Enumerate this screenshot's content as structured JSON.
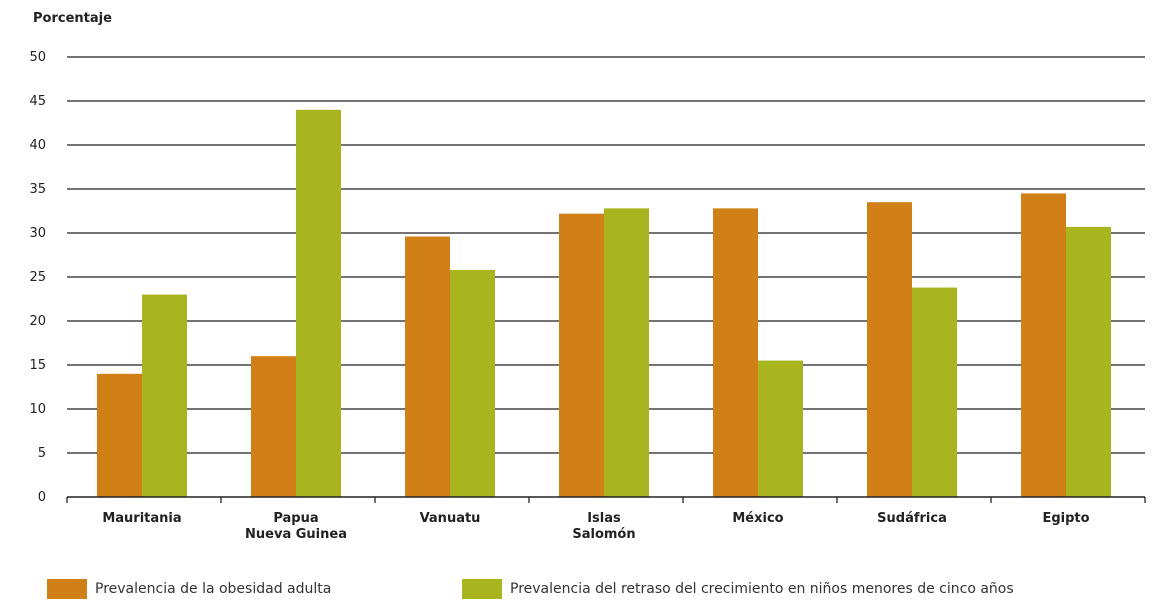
{
  "chart_data": {
    "type": "bar",
    "ylabel": "Porcentaje",
    "xlabel": "",
    "ylim": [
      0,
      50
    ],
    "yticks": [
      0,
      5,
      10,
      15,
      20,
      25,
      30,
      35,
      40,
      45,
      50
    ],
    "grid": true,
    "legend_position": "bottom",
    "categories": [
      [
        "Mauritania"
      ],
      [
        "Papua",
        "Nueva Guinea"
      ],
      [
        "Vanuatu"
      ],
      [
        "Islas",
        "Salomón"
      ],
      [
        "México"
      ],
      [
        "Sudáfrica"
      ],
      [
        "Egipto"
      ]
    ],
    "series": [
      {
        "name": "Prevalencia de la obesidad adulta",
        "color": "#d08016",
        "values": [
          14.0,
          16.0,
          29.6,
          32.2,
          32.8,
          33.5,
          34.5
        ]
      },
      {
        "name": "Prevalencia del retraso del crecimiento en niños menores de cinco años",
        "color": "#a8b51e",
        "values": [
          23.0,
          44.0,
          25.8,
          32.8,
          15.5,
          23.8,
          30.7
        ]
      }
    ]
  }
}
